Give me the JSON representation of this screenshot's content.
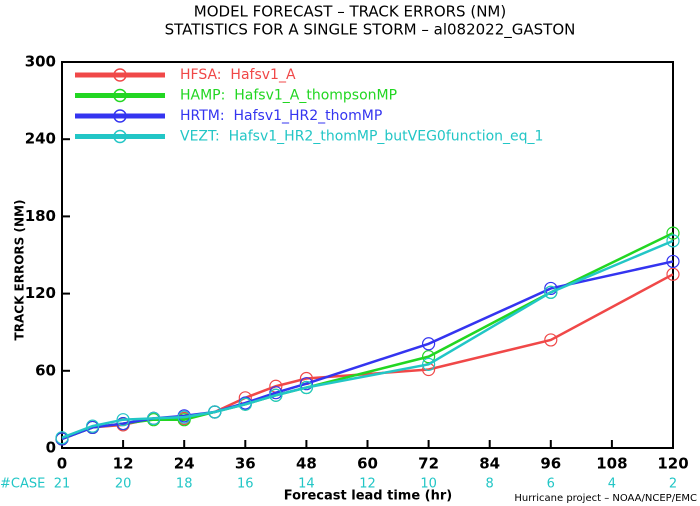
{
  "chart_data": {
    "type": "line",
    "title": "MODEL FORECAST – TRACK ERRORS (NM)",
    "subtitle": "STATISTICS FOR A SINGLE STORM – al082022_GASTON",
    "x_label": "Forecast lead time (hr)",
    "y_label": "TRACK ERRORS (NM)",
    "footer": "Hurricane project – NOAA/NCEP/EMC",
    "x": [
      0,
      6,
      12,
      18,
      24,
      30,
      36,
      42,
      48,
      72,
      96,
      120
    ],
    "series": [
      {
        "name": "HFSA:  Hafsv1_A",
        "color": "#f04848",
        "values": [
          7,
          16,
          18,
          23,
          23,
          28,
          39,
          48,
          54,
          61,
          84,
          135
        ]
      },
      {
        "name": "HAMP:  Hafsv1_A_thompsonMP",
        "color": "#22d622",
        "values": [
          7,
          16,
          19,
          22,
          22,
          28,
          34,
          41,
          47,
          71,
          121,
          167
        ]
      },
      {
        "name": "HRTM:  Hafsv1_HR2_thomMP",
        "color": "#3434f0",
        "values": [
          7,
          16,
          19,
          23,
          25,
          28,
          35,
          43,
          50,
          81,
          124,
          145
        ]
      },
      {
        "name": "VEZT:  Hafsv1_HR2_thomMP_butVEG0function_eq_1",
        "color": "#22c6c6",
        "values": [
          8,
          17,
          22,
          23,
          24,
          28,
          34,
          41,
          47,
          65,
          121,
          161
        ]
      }
    ],
    "cases": {
      "label": "#CASE",
      "values": [
        21,
        20,
        18,
        16,
        14,
        12,
        10,
        8,
        6,
        4,
        2
      ],
      "color": "#22c6c6"
    },
    "xlim": [
      0,
      120
    ],
    "xticks": [
      0,
      12,
      24,
      36,
      48,
      60,
      72,
      84,
      96,
      108,
      120
    ],
    "ylim": [
      0,
      300
    ],
    "yticks": [
      0,
      60,
      120,
      180,
      240,
      300
    ],
    "legend": "upper left"
  }
}
